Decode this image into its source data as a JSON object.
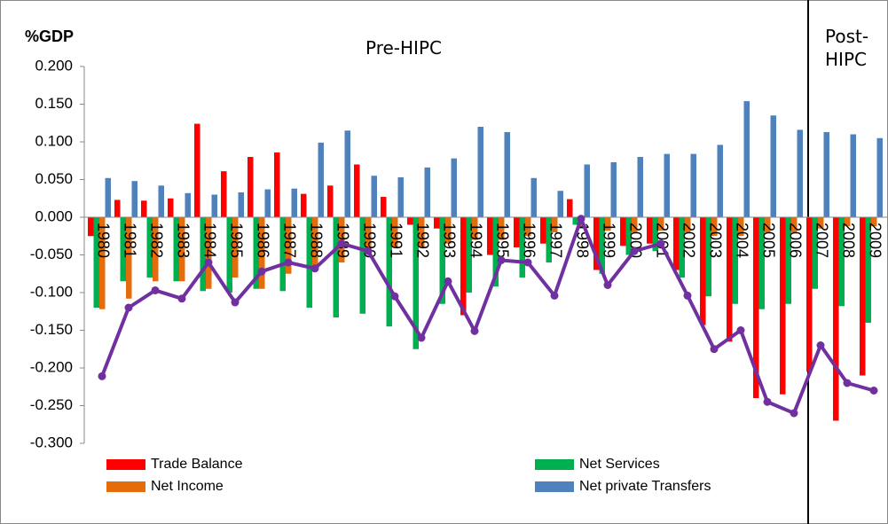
{
  "chart_data": {
    "type": "bar",
    "y_label": "%GDP",
    "annotations": [
      "Pre-HIPC",
      "Post-HIPC"
    ],
    "categories": [
      "1980",
      "1981",
      "1982",
      "1983",
      "1984",
      "1985",
      "1986",
      "1987",
      "1988",
      "1989",
      "1990",
      "1991",
      "1992",
      "1993",
      "1994",
      "1995",
      "1996",
      "1997",
      "1998",
      "1999",
      "2000",
      "2001",
      "2002",
      "2003",
      "2004",
      "2005",
      "2006",
      "2007",
      "2008",
      "2009"
    ],
    "series": [
      {
        "name": "Trade Balance",
        "color": "#ff0000",
        "values": [
          -0.025,
          0.023,
          0.022,
          0.025,
          0.124,
          0.061,
          0.08,
          0.086,
          0.031,
          0.042,
          0.07,
          0.027,
          -0.01,
          -0.015,
          -0.13,
          -0.05,
          -0.04,
          -0.035,
          0.024,
          -0.07,
          -0.038,
          -0.035,
          -0.07,
          -0.143,
          -0.165,
          -0.24,
          -0.235,
          -0.205,
          -0.27,
          -0.21
        ]
      },
      {
        "name": "Net Services",
        "color": "#00b050",
        "values": [
          -0.12,
          -0.085,
          -0.08,
          -0.085,
          -0.098,
          -0.1,
          -0.095,
          -0.098,
          -0.12,
          -0.133,
          -0.128,
          -0.145,
          -0.175,
          -0.115,
          -0.1,
          -0.092,
          -0.08,
          -0.06,
          -0.01,
          -0.075,
          -0.05,
          -0.045,
          -0.08,
          -0.105,
          -0.115,
          -0.122,
          -0.115,
          -0.095,
          -0.118,
          -0.14
        ]
      },
      {
        "name": "Net Income",
        "color": "#e46c0a",
        "values": [
          -0.122,
          -0.108,
          -0.085,
          -0.085,
          -0.095,
          -0.08,
          -0.095,
          -0.075,
          -0.07,
          -0.06,
          -0.045,
          -0.04,
          -0.04,
          -0.035,
          -0.03,
          -0.03,
          -0.025,
          -0.02,
          -0.015,
          -0.018,
          -0.02,
          -0.018,
          -0.02,
          -0.025,
          -0.025,
          -0.02,
          -0.02,
          -0.015,
          -0.012,
          -0.012
        ]
      },
      {
        "name": "Net private Transfers",
        "color": "#4f81bd",
        "values": [
          0.052,
          0.048,
          0.042,
          0.032,
          0.03,
          0.033,
          0.037,
          0.038,
          0.099,
          0.115,
          0.055,
          0.053,
          0.066,
          0.078,
          0.12,
          0.113,
          0.052,
          0.035,
          0.07,
          0.073,
          0.08,
          0.084,
          0.084,
          0.096,
          0.154,
          0.135,
          0.116,
          0.113,
          0.11,
          0.105
        ]
      },
      {
        "type": "line",
        "color": "#7030a0",
        "values": [
          -0.211,
          -0.12,
          -0.097,
          -0.108,
          -0.06,
          -0.113,
          -0.072,
          -0.06,
          -0.068,
          -0.035,
          -0.045,
          -0.105,
          -0.16,
          -0.085,
          -0.151,
          -0.057,
          -0.06,
          -0.104,
          -0.002,
          -0.09,
          -0.045,
          -0.035,
          -0.104,
          -0.175,
          -0.15,
          -0.245,
          -0.26,
          -0.17,
          -0.22,
          -0.23
        ]
      }
    ],
    "ylim": [
      -0.3,
      0.2
    ],
    "yticks": [
      {
        "value": -0.3,
        "label": "-0.300"
      },
      {
        "value": -0.25,
        "label": "-0.250"
      },
      {
        "value": -0.2,
        "label": "-0.200"
      },
      {
        "value": -0.15,
        "label": "-0.150"
      },
      {
        "value": -0.1,
        "label": "-0.100"
      },
      {
        "value": -0.05,
        "label": "-0.050"
      },
      {
        "value": 0,
        "label": "0.000"
      },
      {
        "value": 0.05,
        "label": "0.050"
      },
      {
        "value": 0.1,
        "label": "0.100"
      },
      {
        "value": 0.15,
        "label": "0.150"
      },
      {
        "value": 0.2,
        "label": "0.200"
      }
    ],
    "grid": false,
    "legend": "bottom"
  }
}
